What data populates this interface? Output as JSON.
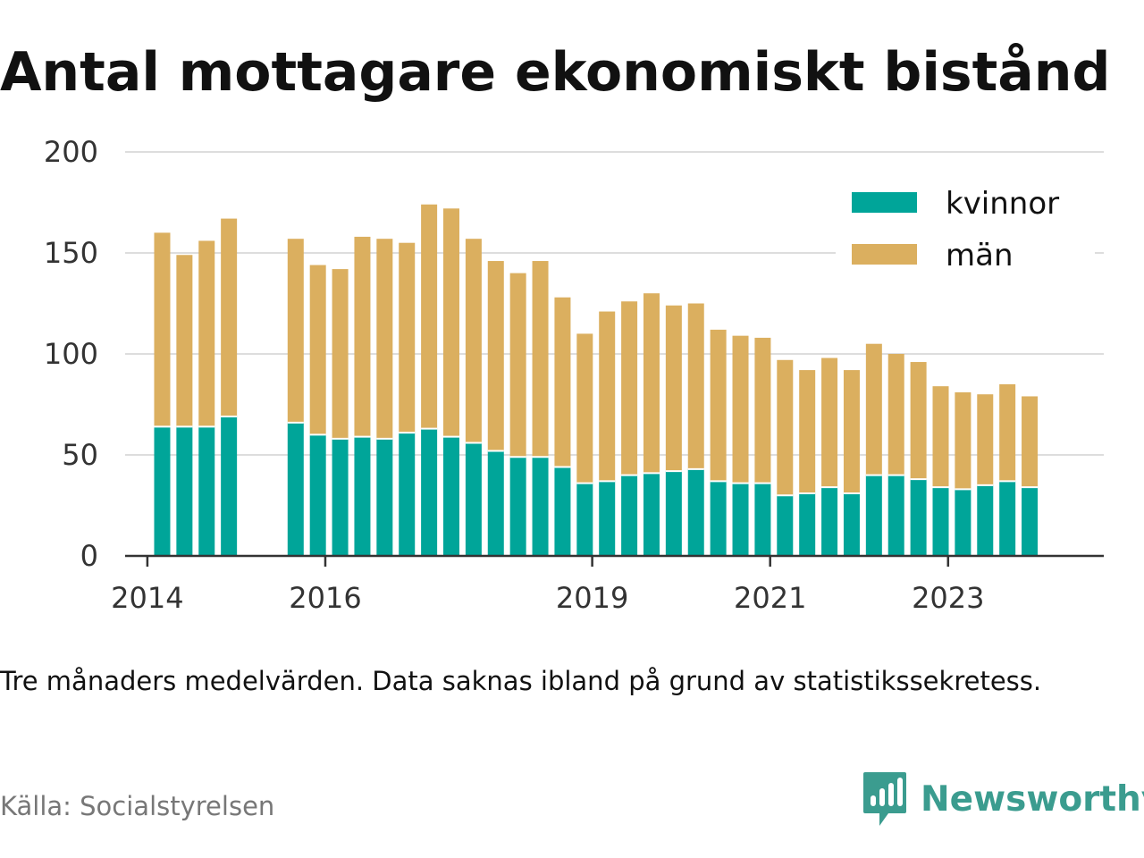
{
  "title": "Antal mottagare ekonomiskt bistånd",
  "note": "Tre månaders medelvärden. Data saknas ibland på grund av statistikssekretess.",
  "source": "Källa: Socialstyrelsen",
  "brand": {
    "name": "Newsworthy",
    "icon": "newsworthy-logo-icon",
    "color": "#3b9c8f"
  },
  "colors": {
    "kvinnor": "#00a599",
    "man": "#dbaf5f",
    "grid": "#dddddd",
    "axis": "#333333"
  },
  "chart_data": {
    "type": "bar",
    "stacked": true,
    "grid": true,
    "legend_position": "top-right",
    "ylim": [
      0,
      200
    ],
    "yticks": [
      0,
      50,
      100,
      150,
      200
    ],
    "xlim": [
      "2013-10",
      "2024-10"
    ],
    "xticks": [
      {
        "label": "2014",
        "x": "2014-01"
      },
      {
        "label": "2016",
        "x": "2016-01"
      },
      {
        "label": "2019",
        "x": "2019-01"
      },
      {
        "label": "2021",
        "x": "2021-01"
      },
      {
        "label": "2023",
        "x": "2023-01"
      }
    ],
    "x": [
      "2014-03",
      "2014-06",
      "2014-09",
      "2014-12",
      "2015-09",
      "2015-12",
      "2016-03",
      "2016-06",
      "2016-09",
      "2016-12",
      "2017-03",
      "2017-06",
      "2017-09",
      "2017-12",
      "2018-03",
      "2018-06",
      "2018-09",
      "2018-12",
      "2019-03",
      "2019-06",
      "2019-09",
      "2019-12",
      "2020-03",
      "2020-06",
      "2020-09",
      "2020-12",
      "2021-03",
      "2021-06",
      "2021-09",
      "2021-12",
      "2022-03",
      "2022-06",
      "2022-09",
      "2022-12",
      "2023-03",
      "2023-06",
      "2023-09",
      "2023-12"
    ],
    "series": [
      {
        "name": "kvinnor",
        "values": [
          64,
          64,
          64,
          69,
          66,
          60,
          58,
          59,
          58,
          61,
          63,
          59,
          56,
          52,
          49,
          49,
          44,
          36,
          37,
          40,
          41,
          42,
          43,
          37,
          36,
          36,
          30,
          31,
          34,
          31,
          40,
          40,
          38,
          34,
          33,
          35,
          37,
          34
        ]
      },
      {
        "name": "män",
        "values": [
          96,
          85,
          92,
          98,
          91,
          84,
          84,
          99,
          99,
          94,
          111,
          113,
          101,
          94,
          91,
          97,
          84,
          74,
          84,
          86,
          89,
          82,
          82,
          75,
          73,
          72,
          67,
          61,
          64,
          61,
          65,
          60,
          58,
          50,
          48,
          45,
          48,
          45
        ]
      }
    ]
  }
}
